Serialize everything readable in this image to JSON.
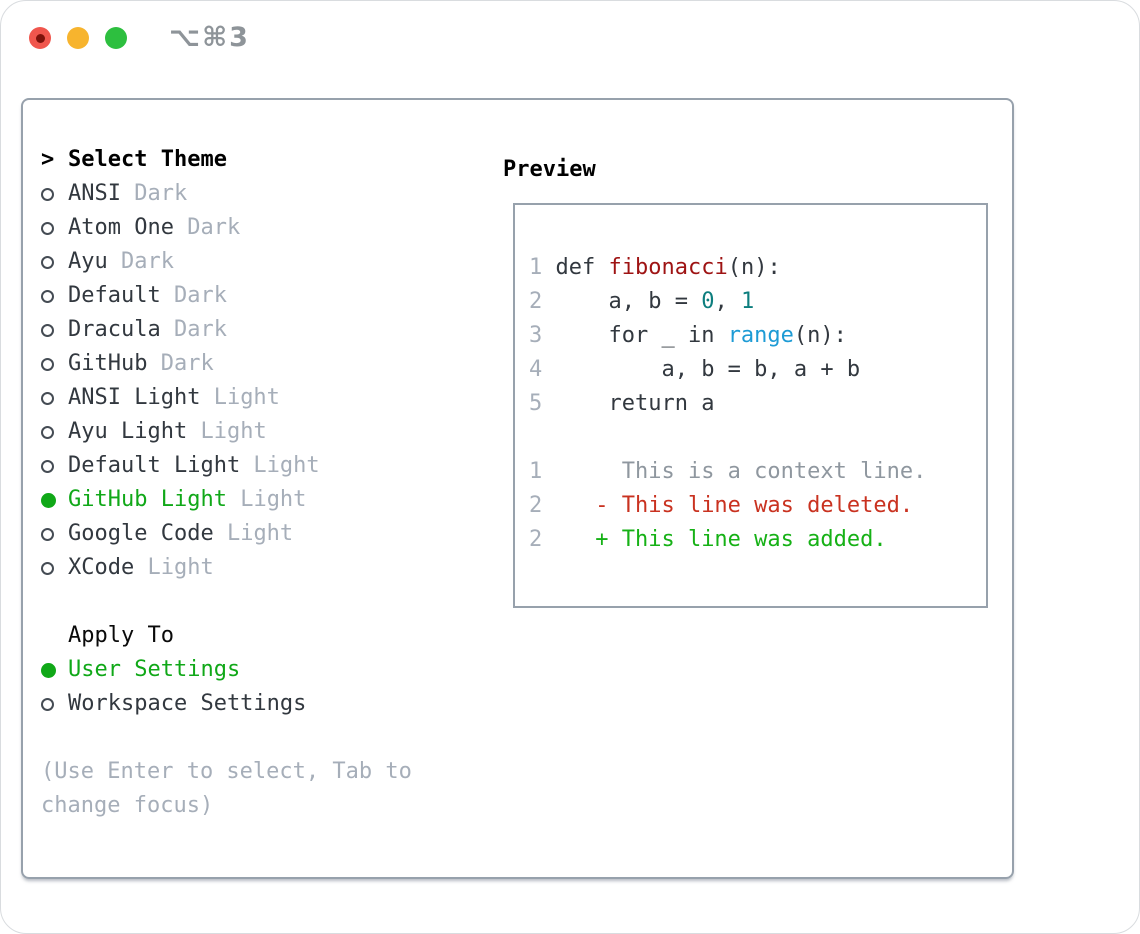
{
  "titlebar": {
    "shortcut": "⌥⌘3",
    "traffic_lights": {
      "close": "#f0564d",
      "close_dot": "#7d120b",
      "minimize": "#f7b42e",
      "zoom": "#2dbf3f"
    }
  },
  "theme_panel": {
    "title": "Select Theme",
    "title_marker": ">",
    "themes": [
      {
        "name": "ANSI",
        "variant": "Dark",
        "selected": false
      },
      {
        "name": "Atom One",
        "variant": "Dark",
        "selected": false
      },
      {
        "name": "Ayu",
        "variant": "Dark",
        "selected": false
      },
      {
        "name": "Default",
        "variant": "Dark",
        "selected": false
      },
      {
        "name": "Dracula",
        "variant": "Dark",
        "selected": false
      },
      {
        "name": "GitHub",
        "variant": "Dark",
        "selected": false
      },
      {
        "name": "ANSI Light",
        "variant": "Light",
        "selected": false
      },
      {
        "name": "Ayu Light",
        "variant": "Light",
        "selected": false
      },
      {
        "name": "Default Light",
        "variant": "Light",
        "selected": false
      },
      {
        "name": "GitHub Light",
        "variant": "Light",
        "selected": true
      },
      {
        "name": "Google Code",
        "variant": "Light",
        "selected": false
      },
      {
        "name": "XCode",
        "variant": "Light",
        "selected": false
      }
    ],
    "apply_to": {
      "title": "Apply To",
      "options": [
        {
          "label": "User Settings",
          "selected": true
        },
        {
          "label": "Workspace Settings",
          "selected": false
        }
      ]
    },
    "hint": "(Use Enter to select, Tab to change focus)"
  },
  "preview": {
    "title": "Preview",
    "code_lines": [
      {
        "kind": "code",
        "num": "1",
        "segs": [
          [
            "plain",
            " def "
          ],
          [
            "func",
            "fibonacci"
          ],
          [
            "plain",
            "(n):"
          ]
        ]
      },
      {
        "kind": "code",
        "num": "2",
        "segs": [
          [
            "plain",
            "     a, b = "
          ],
          [
            "number",
            "0"
          ],
          [
            "plain",
            ", "
          ],
          [
            "number",
            "1"
          ]
        ]
      },
      {
        "kind": "code",
        "num": "3",
        "segs": [
          [
            "plain",
            "     for _ in "
          ],
          [
            "builtin",
            "range"
          ],
          [
            "plain",
            "(n):"
          ]
        ]
      },
      {
        "kind": "code",
        "num": "4",
        "segs": [
          [
            "plain",
            "         a, b = b, a + b"
          ]
        ]
      },
      {
        "kind": "code",
        "num": "5",
        "segs": [
          [
            "plain",
            "     return a"
          ]
        ]
      },
      {
        "kind": "blank",
        "num": "",
        "segs": []
      },
      {
        "kind": "context",
        "num": "1",
        "segs": [
          [
            "context",
            "      This is a context line."
          ]
        ]
      },
      {
        "kind": "deleted",
        "num": "2",
        "segs": [
          [
            "deleted",
            "    - This line was deleted."
          ]
        ]
      },
      {
        "kind": "added",
        "num": "2",
        "segs": [
          [
            "added",
            "    + This line was added."
          ]
        ]
      }
    ]
  },
  "icons": {
    "radio_unselected": "circle-outline",
    "radio_selected": "circle-filled",
    "title_marker_glyph": ">"
  },
  "colors": {
    "selection_green": "#10a818",
    "added_green": "#16b116",
    "deleted_red": "#c93220",
    "function_red": "#9e1313",
    "number_teal": "#0d7e7e",
    "builtin_blue": "#1d9bd5",
    "muted_gray": "#a6aeb9",
    "text_dark": "#32383f",
    "border_gray": "#97a1ac"
  }
}
